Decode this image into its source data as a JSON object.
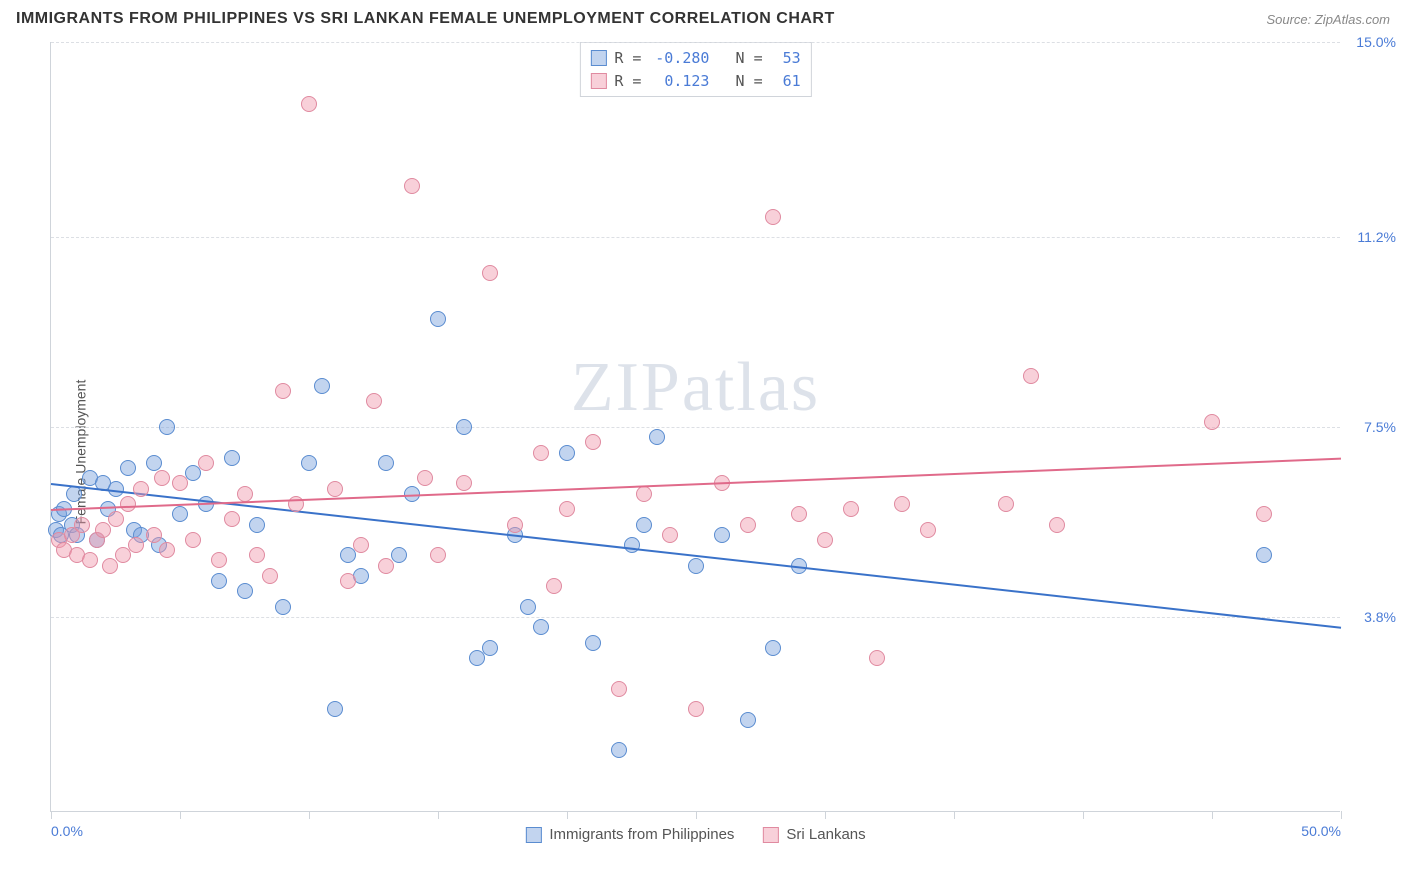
{
  "title": "IMMIGRANTS FROM PHILIPPINES VS SRI LANKAN FEMALE UNEMPLOYMENT CORRELATION CHART",
  "source": "Source: ZipAtlas.com",
  "watermark": "ZIPatlas",
  "y_axis_label": "Female Unemployment",
  "chart": {
    "type": "scatter",
    "background_color": "#ffffff",
    "grid_color": "#dcdfe4",
    "axis_color": "#cfd4da",
    "tick_label_color": "#4a7bd6",
    "xlim": [
      0,
      50
    ],
    "ylim": [
      0,
      15
    ],
    "x_ticks_positions": [
      0,
      5,
      10,
      15,
      20,
      25,
      30,
      35,
      40,
      45,
      50
    ],
    "x_tick_labels": {
      "0": "0.0%",
      "50": "50.0%"
    },
    "y_ticks": [
      {
        "v": 3.8,
        "label": "3.8%"
      },
      {
        "v": 7.5,
        "label": "7.5%"
      },
      {
        "v": 11.2,
        "label": "11.2%"
      },
      {
        "v": 15.0,
        "label": "15.0%"
      }
    ],
    "series": [
      {
        "key": "philippines",
        "label": "Immigrants from Philippines",
        "point_fill": "rgba(120,160,220,0.45)",
        "point_stroke": "#5a8cd0",
        "line_color": "#3a72c9",
        "R": "-0.280",
        "N": "53",
        "point_radius": 8,
        "trend": {
          "x1": 0,
          "y1": 6.4,
          "x2": 50,
          "y2": 3.6
        },
        "points": [
          [
            0.2,
            5.5
          ],
          [
            0.3,
            5.8
          ],
          [
            0.4,
            5.4
          ],
          [
            0.5,
            5.9
          ],
          [
            0.8,
            5.6
          ],
          [
            0.9,
            6.2
          ],
          [
            1.0,
            5.4
          ],
          [
            1.5,
            6.5
          ],
          [
            1.8,
            5.3
          ],
          [
            2.0,
            6.4
          ],
          [
            2.2,
            5.9
          ],
          [
            2.5,
            6.3
          ],
          [
            3.0,
            6.7
          ],
          [
            3.2,
            5.5
          ],
          [
            3.5,
            5.4
          ],
          [
            4.0,
            6.8
          ],
          [
            4.2,
            5.2
          ],
          [
            4.5,
            7.5
          ],
          [
            5.0,
            5.8
          ],
          [
            5.5,
            6.6
          ],
          [
            6.0,
            6.0
          ],
          [
            6.5,
            4.5
          ],
          [
            7.0,
            6.9
          ],
          [
            7.5,
            4.3
          ],
          [
            8.0,
            5.6
          ],
          [
            9.0,
            4.0
          ],
          [
            10.0,
            6.8
          ],
          [
            10.5,
            8.3
          ],
          [
            11.0,
            2.0
          ],
          [
            11.5,
            5.0
          ],
          [
            12.0,
            4.6
          ],
          [
            13.0,
            6.8
          ],
          [
            13.5,
            5.0
          ],
          [
            14.0,
            6.2
          ],
          [
            15.0,
            9.6
          ],
          [
            16.0,
            7.5
          ],
          [
            16.5,
            3.0
          ],
          [
            17.0,
            3.2
          ],
          [
            18.0,
            5.4
          ],
          [
            18.5,
            4.0
          ],
          [
            19.0,
            3.6
          ],
          [
            20.0,
            7.0
          ],
          [
            21.0,
            3.3
          ],
          [
            22.0,
            1.2
          ],
          [
            22.5,
            5.2
          ],
          [
            23.0,
            5.6
          ],
          [
            23.5,
            7.3
          ],
          [
            25.0,
            4.8
          ],
          [
            26.0,
            5.4
          ],
          [
            27.0,
            1.8
          ],
          [
            28.0,
            3.2
          ],
          [
            29.0,
            4.8
          ],
          [
            47.0,
            5.0
          ]
        ]
      },
      {
        "key": "srilankans",
        "label": "Sri Lankans",
        "point_fill": "rgba(240,150,170,0.45)",
        "point_stroke": "#e08aa0",
        "line_color": "#e06a8a",
        "R": "0.123",
        "N": "61",
        "point_radius": 8,
        "trend": {
          "x1": 0,
          "y1": 5.9,
          "x2": 50,
          "y2": 6.9
        },
        "points": [
          [
            0.3,
            5.3
          ],
          [
            0.5,
            5.1
          ],
          [
            0.8,
            5.4
          ],
          [
            1.0,
            5.0
          ],
          [
            1.2,
            5.6
          ],
          [
            1.5,
            4.9
          ],
          [
            1.8,
            5.3
          ],
          [
            2.0,
            5.5
          ],
          [
            2.3,
            4.8
          ],
          [
            2.5,
            5.7
          ],
          [
            2.8,
            5.0
          ],
          [
            3.0,
            6.0
          ],
          [
            3.3,
            5.2
          ],
          [
            3.5,
            6.3
          ],
          [
            4.0,
            5.4
          ],
          [
            4.3,
            6.5
          ],
          [
            4.5,
            5.1
          ],
          [
            5.0,
            6.4
          ],
          [
            5.5,
            5.3
          ],
          [
            6.0,
            6.8
          ],
          [
            6.5,
            4.9
          ],
          [
            7.0,
            5.7
          ],
          [
            7.5,
            6.2
          ],
          [
            8.0,
            5.0
          ],
          [
            8.5,
            4.6
          ],
          [
            9.0,
            8.2
          ],
          [
            9.5,
            6.0
          ],
          [
            10.0,
            13.8
          ],
          [
            11.0,
            6.3
          ],
          [
            11.5,
            4.5
          ],
          [
            12.0,
            5.2
          ],
          [
            12.5,
            8.0
          ],
          [
            13.0,
            4.8
          ],
          [
            14.0,
            12.2
          ],
          [
            14.5,
            6.5
          ],
          [
            15.0,
            5.0
          ],
          [
            16.0,
            6.4
          ],
          [
            17.0,
            10.5
          ],
          [
            18.0,
            5.6
          ],
          [
            19.0,
            7.0
          ],
          [
            19.5,
            4.4
          ],
          [
            20.0,
            5.9
          ],
          [
            21.0,
            7.2
          ],
          [
            22.0,
            2.4
          ],
          [
            23.0,
            6.2
          ],
          [
            24.0,
            5.4
          ],
          [
            25.0,
            2.0
          ],
          [
            26.0,
            6.4
          ],
          [
            27.0,
            5.6
          ],
          [
            28.0,
            11.6
          ],
          [
            29.0,
            5.8
          ],
          [
            30.0,
            5.3
          ],
          [
            31.0,
            5.9
          ],
          [
            32.0,
            3.0
          ],
          [
            33.0,
            6.0
          ],
          [
            34.0,
            5.5
          ],
          [
            37.0,
            6.0
          ],
          [
            38.0,
            8.5
          ],
          [
            39.0,
            5.6
          ],
          [
            45.0,
            7.6
          ],
          [
            47.0,
            5.8
          ]
        ]
      }
    ],
    "bottom_legend": [
      {
        "swatch_fill": "rgba(120,160,220,0.45)",
        "swatch_stroke": "#5a8cd0",
        "label": "Immigrants from Philippines"
      },
      {
        "swatch_fill": "rgba(240,150,170,0.45)",
        "swatch_stroke": "#e08aa0",
        "label": "Sri Lankans"
      }
    ]
  }
}
